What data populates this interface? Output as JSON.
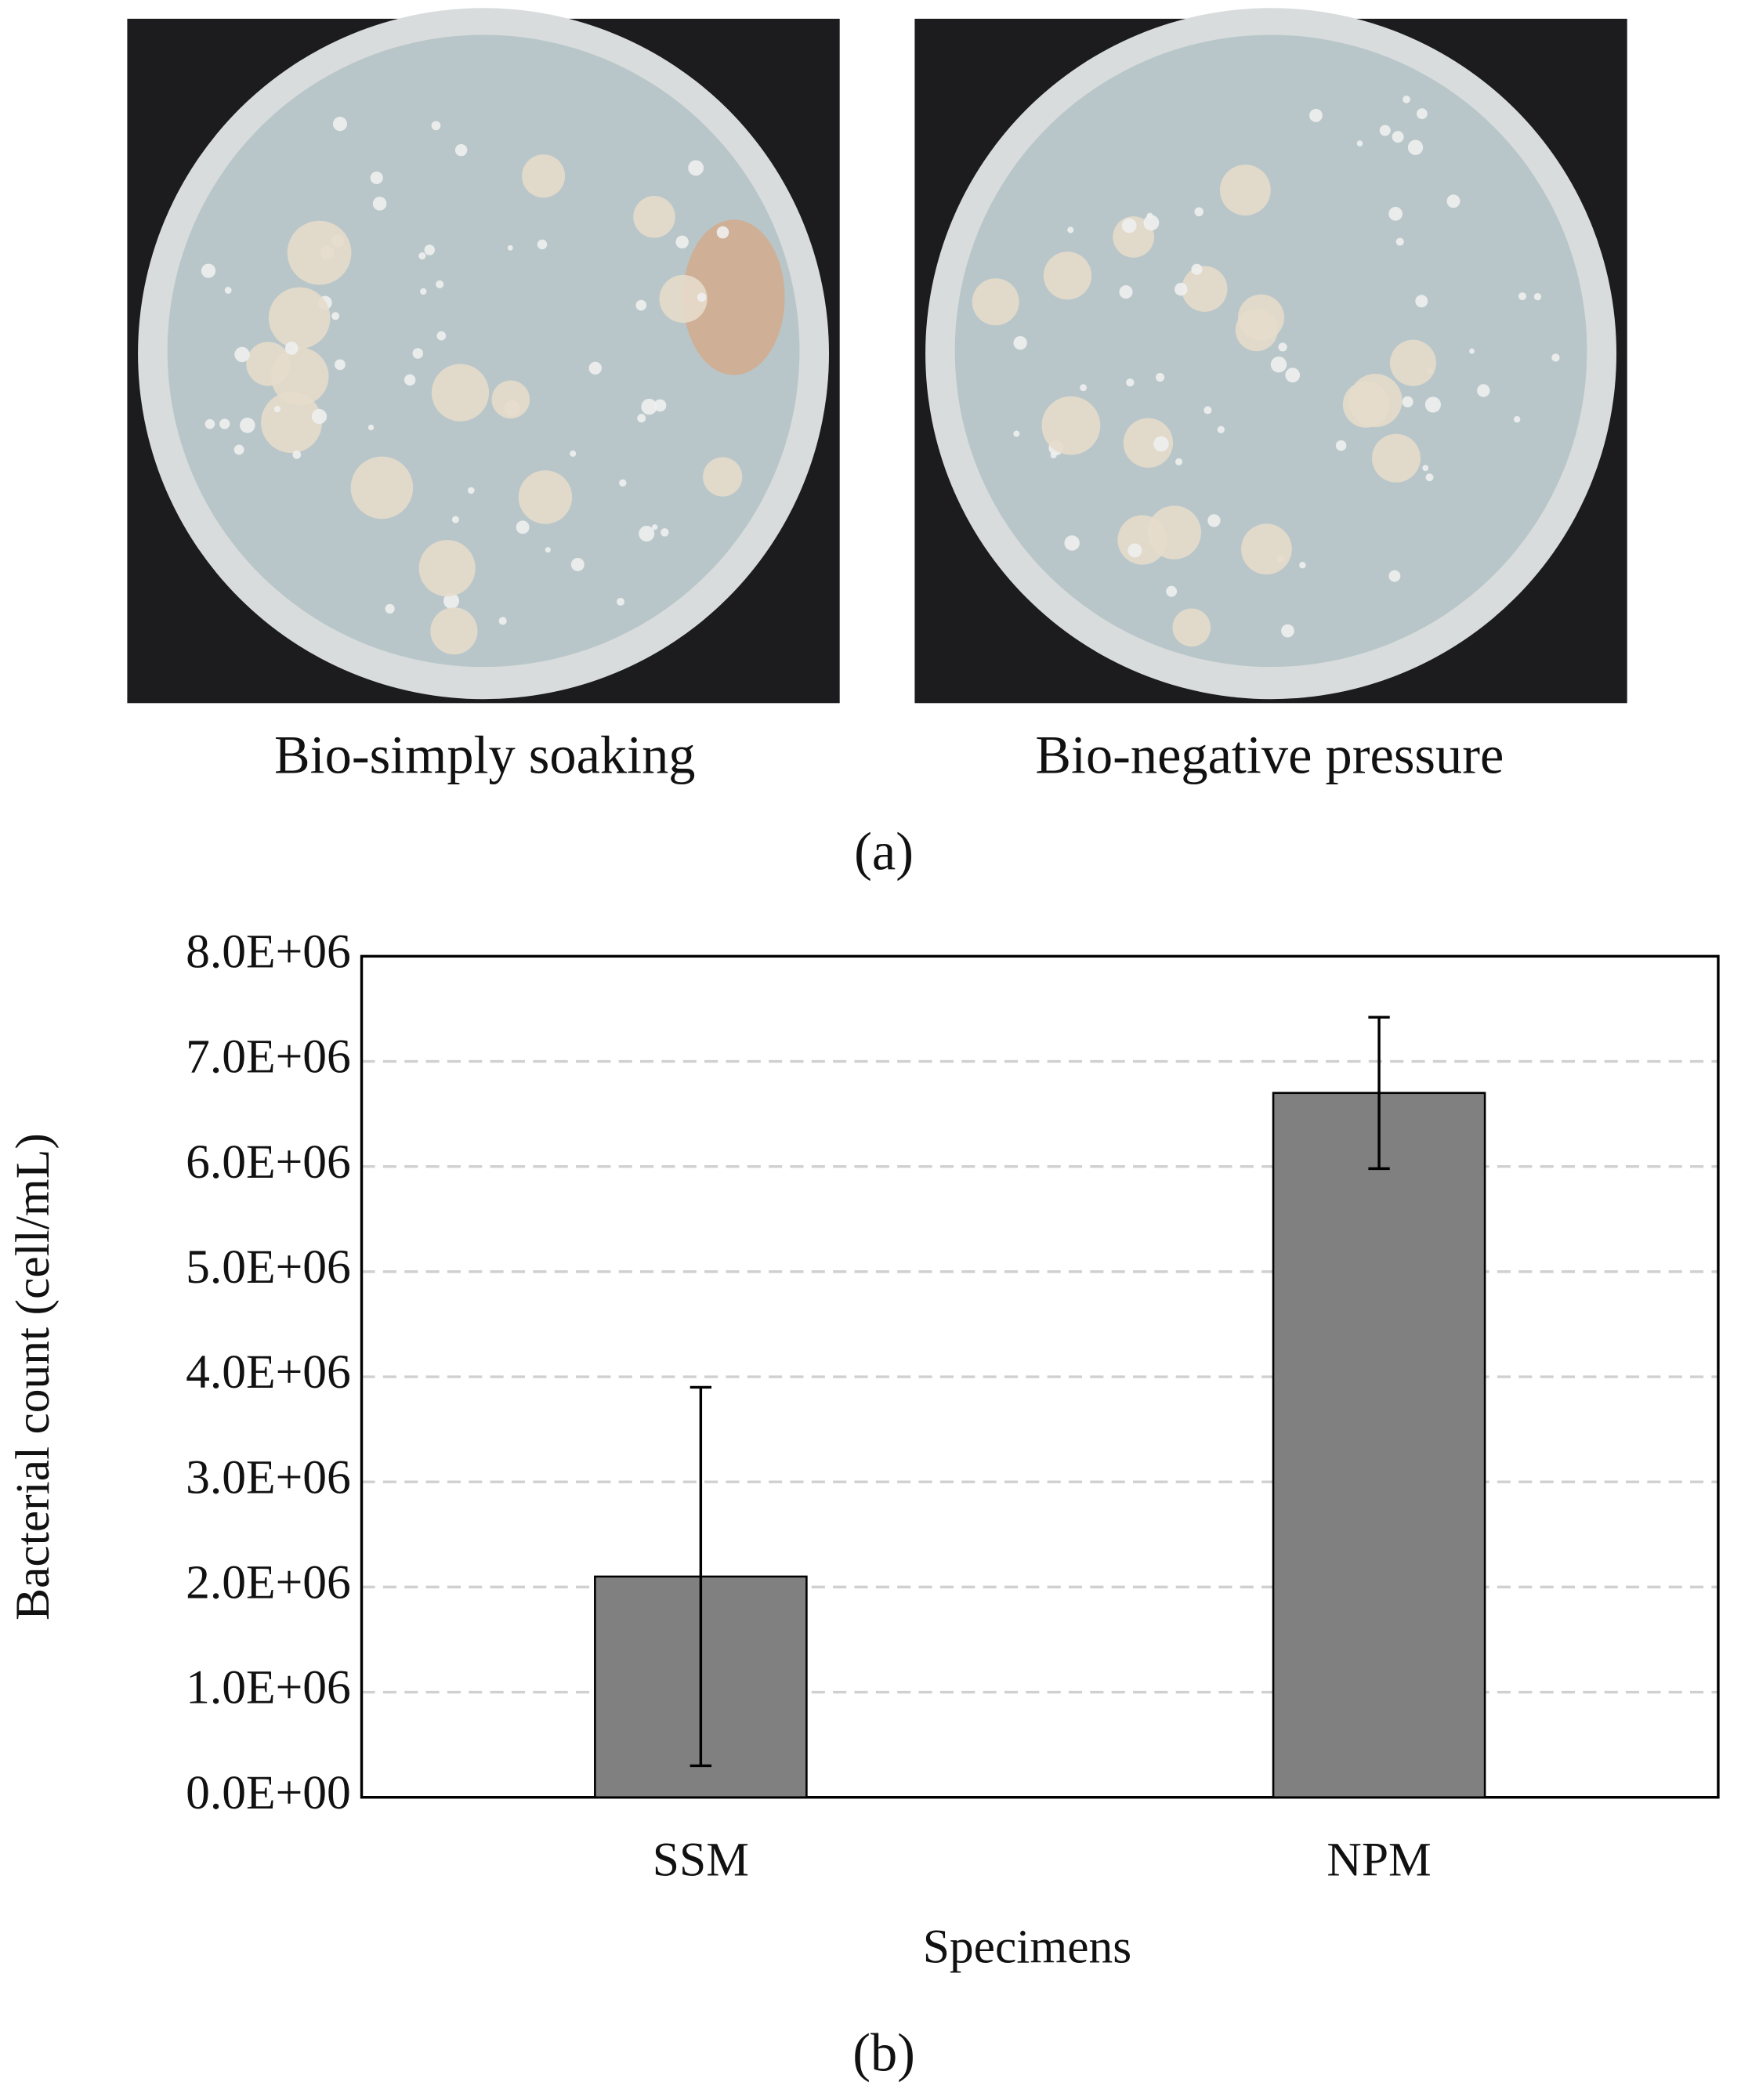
{
  "panel_a": {
    "captions": [
      "Bio-simply soaking",
      "Bio-negative pressure"
    ],
    "label": "(a)"
  },
  "chart_data": {
    "type": "bar",
    "label": "(b)",
    "xlabel": "Specimens",
    "ylabel": "Bacterial count (cell/mL)",
    "categories": [
      "SSM",
      "NPM"
    ],
    "values": [
      2100000,
      6700000
    ],
    "errors": [
      1800000,
      720000
    ],
    "color": "#808080",
    "ylim": [
      0,
      8000000
    ],
    "yticks": [
      {
        "value": 0,
        "label": "0.0E+00"
      },
      {
        "value": 1000000,
        "label": "1.0E+06"
      },
      {
        "value": 2000000,
        "label": "2.0E+06"
      },
      {
        "value": 3000000,
        "label": "3.0E+06"
      },
      {
        "value": 4000000,
        "label": "4.0E+06"
      },
      {
        "value": 5000000,
        "label": "5.0E+06"
      },
      {
        "value": 6000000,
        "label": "6.0E+06"
      },
      {
        "value": 7000000,
        "label": "7.0E+06"
      },
      {
        "value": 8000000,
        "label": "8.0E+06"
      }
    ],
    "grid": true
  }
}
